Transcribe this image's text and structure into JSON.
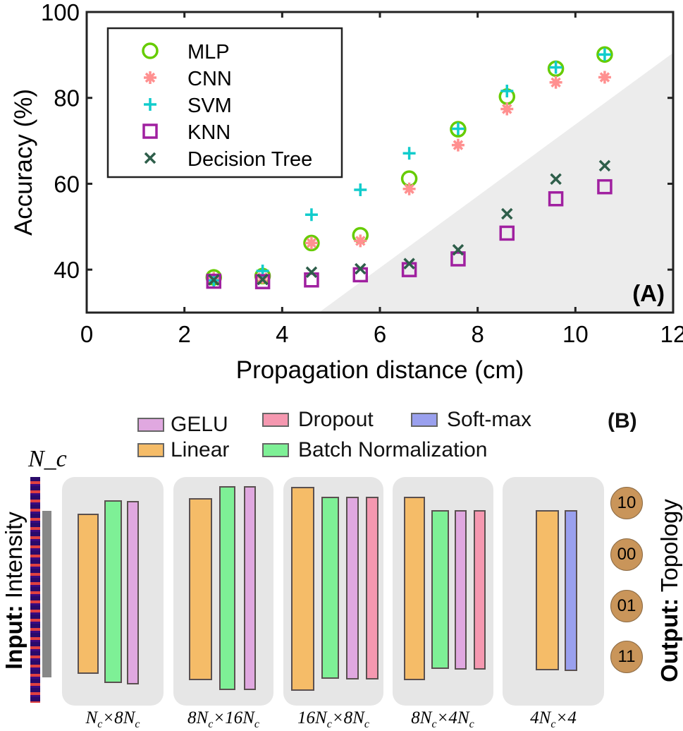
{
  "chart_data": {
    "type": "scatter",
    "panel_label": "(A)",
    "xlabel": "Propagation distance (cm)",
    "ylabel": "Accuracy (%)",
    "xlim": [
      0,
      12
    ],
    "ylim": [
      30,
      100
    ],
    "xticks": [
      0,
      2,
      4,
      6,
      8,
      10,
      12
    ],
    "yticks": [
      40,
      60,
      80,
      100
    ],
    "grid": false,
    "legend_position": "top-left",
    "x": [
      2.6,
      3.6,
      4.6,
      5.6,
      6.6,
      7.6,
      8.6,
      9.6,
      10.6
    ],
    "series": [
      {
        "name": "MLP",
        "marker": "circle",
        "color": "#66cc00",
        "values": [
          38.2,
          38.5,
          46.2,
          48,
          61.2,
          72.7,
          80.3,
          86.8,
          90.1
        ]
      },
      {
        "name": "CNN",
        "marker": "asterisk",
        "color": "#ff9090",
        "values": [
          38,
          38.2,
          46.2,
          46.7,
          58.8,
          69,
          77.4,
          83.6,
          84.8
        ]
      },
      {
        "name": "SVM",
        "marker": "plus",
        "color": "#11cccc",
        "values": [
          37.5,
          39.7,
          52.8,
          58.6,
          67.1,
          72.8,
          81.6,
          87.1,
          90.1
        ]
      },
      {
        "name": "KNN",
        "marker": "square",
        "color": "#a020a0",
        "values": [
          37.3,
          37.2,
          37.6,
          38.8,
          40,
          42.5,
          48.5,
          56.5,
          59.3
        ]
      },
      {
        "name": "Decision Tree",
        "marker": "x",
        "color": "#2e5e4a",
        "values": [
          37.6,
          37.7,
          39.4,
          40.2,
          41.4,
          44.6,
          53,
          61.1,
          64.2
        ]
      }
    ],
    "shaded_region_color": "#ececec"
  },
  "diagram": {
    "panel_label": "(B)",
    "legend": {
      "gelu": "GELU",
      "dropout": "Dropout",
      "softmax": "Soft-max",
      "linear": "Linear",
      "batchnorm": "Batch Normalization"
    },
    "colors": {
      "gelu": "#e0a8e0",
      "dropout": "#f598b0",
      "softmax": "#9aa0ee",
      "linear": "#f5bc68",
      "batchnorm": "#7ef096",
      "output": "#c9955a"
    },
    "input_symbol": "N_c",
    "input_label_bold": "Input:",
    "input_label": "Intensity",
    "output_label_bold": "Output:",
    "output_label": "Topology",
    "outputs": [
      "10",
      "00",
      "01",
      "11"
    ],
    "dims": [
      "Nc×8Nc",
      "8Nc×16Nc",
      "16Nc×8Nc",
      "8Nc×4Nc",
      "4Nc×4"
    ]
  }
}
